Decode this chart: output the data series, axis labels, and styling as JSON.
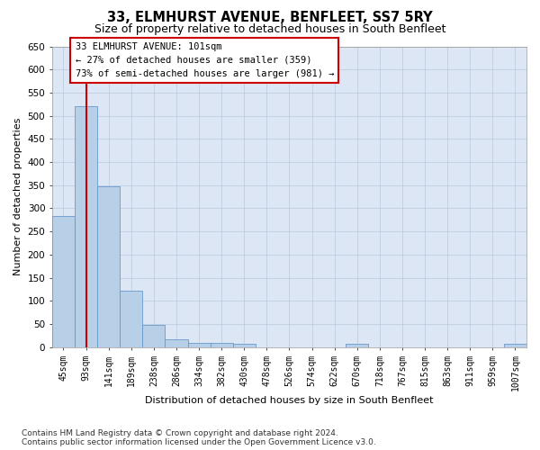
{
  "title": "33, ELMHURST AVENUE, BENFLEET, SS7 5RY",
  "subtitle": "Size of property relative to detached houses in South Benfleet",
  "xlabel": "Distribution of detached houses by size in South Benfleet",
  "ylabel": "Number of detached properties",
  "categories": [
    "45sqm",
    "93sqm",
    "141sqm",
    "189sqm",
    "238sqm",
    "286sqm",
    "334sqm",
    "382sqm",
    "430sqm",
    "478sqm",
    "526sqm",
    "574sqm",
    "622sqm",
    "670sqm",
    "718sqm",
    "767sqm",
    "815sqm",
    "863sqm",
    "911sqm",
    "959sqm",
    "1007sqm"
  ],
  "values": [
    283,
    521,
    347,
    122,
    48,
    16,
    10,
    10,
    7,
    0,
    0,
    0,
    0,
    8,
    0,
    0,
    0,
    0,
    0,
    0,
    7
  ],
  "bar_color": "#b8cfe8",
  "bar_edgecolor": "#6699cc",
  "vline_x": 1.0,
  "vline_color": "#cc0000",
  "ann_line1": "33 ELMHURST AVENUE: 101sqm",
  "ann_line2": "← 27% of detached houses are smaller (359)",
  "ann_line3": "73% of semi-detached houses are larger (981) →",
  "ylim_max": 650,
  "footnote1": "Contains HM Land Registry data © Crown copyright and database right 2024.",
  "footnote2": "Contains public sector information licensed under the Open Government Licence v3.0.",
  "axes_bg": "#dce6f5",
  "grid_color": "#b8c8dc"
}
